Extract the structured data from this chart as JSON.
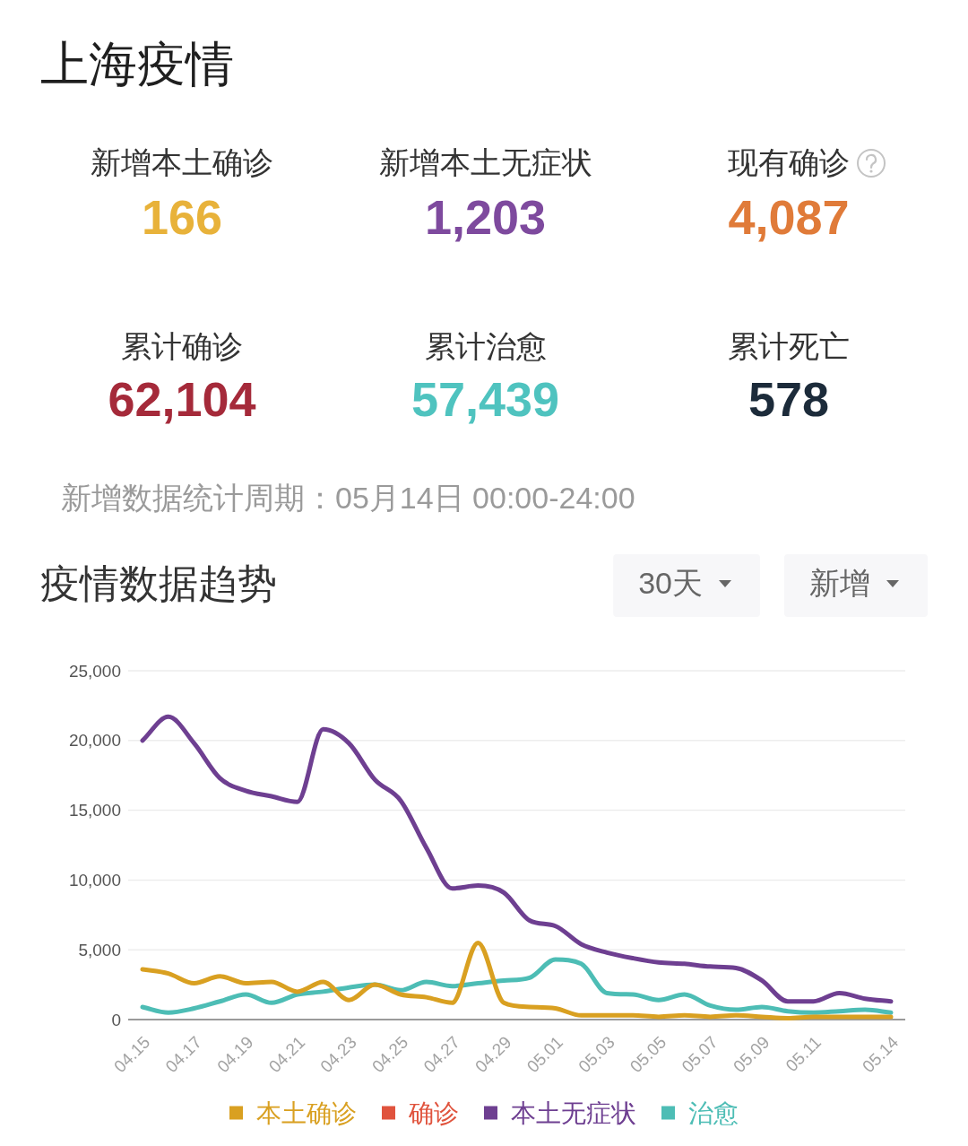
{
  "chart_data": [
    {
      "type": "other",
      "title": "上海疫情",
      "categories": [
        "新增本土确诊",
        "新增本土无症状",
        "现有确诊",
        "累计确诊",
        "累计治愈",
        "累计死亡"
      ],
      "value_labels": [
        "166",
        "1,203",
        "4,087",
        "62,104",
        "57,439",
        "578"
      ],
      "colors": [
        "#e8b23a",
        "#7e4a9e",
        "#e07b39",
        "#a52a3a",
        "#4fc3bf",
        "#1c2b3a"
      ],
      "annotations": [
        "新增数据统计周期：05月14日 00:00-24:00"
      ]
    },
    {
      "type": "line",
      "title": "疫情数据趋势",
      "annotations": [
        "30天",
        "新增"
      ],
      "categories": [
        "04.15",
        null,
        "04.17",
        null,
        "04.19",
        null,
        "04.21",
        null,
        "04.23",
        null,
        "04.25",
        null,
        "04.27",
        null,
        "04.29",
        null,
        "05.01",
        null,
        "05.03",
        null,
        "05.05",
        null,
        "05.07",
        null,
        "05.09",
        null,
        "05.11",
        null,
        null,
        "05.14"
      ],
      "series": [
        {
          "name": "本土确诊",
          "color": "#d9a021",
          "values": [
            3600,
            3300,
            2600,
            3100,
            2600,
            2700,
            2000,
            2700,
            1400,
            2500,
            1800,
            1600,
            1200,
            5500,
            1200,
            900,
            800,
            300,
            300,
            300,
            200,
            300,
            200,
            300,
            200,
            100,
            200,
            200,
            200,
            200
          ]
        },
        {
          "name": "确诊",
          "color": "#e0533d",
          "values": [
            null,
            null,
            null,
            null,
            null,
            null,
            null,
            null,
            null,
            null,
            null,
            null,
            null,
            null,
            null,
            null,
            null,
            null,
            null,
            null,
            null,
            null,
            null,
            null,
            null,
            null,
            null,
            null,
            null,
            null
          ]
        },
        {
          "name": "本土无症状",
          "color": "#6e3f91",
          "values": [
            20000,
            21700,
            19800,
            17300,
            16400,
            16000,
            15600,
            20800,
            19800,
            17200,
            15700,
            12300,
            9400,
            9600,
            9100,
            7100,
            6700,
            5400,
            4800,
            4400,
            4100,
            4000,
            3800,
            3700,
            2800,
            1300,
            1300,
            1900,
            1500,
            1300
          ]
        },
        {
          "name": "治愈",
          "color": "#4dbdb5",
          "values": [
            900,
            500,
            800,
            1300,
            1800,
            1200,
            1800,
            2000,
            2300,
            2500,
            2100,
            2700,
            2400,
            2600,
            2800,
            3000,
            4300,
            4000,
            1900,
            1800,
            1400,
            1800,
            1000,
            700,
            900,
            600,
            500,
            600,
            700,
            500
          ]
        }
      ],
      "ylim": [
        0,
        25000
      ],
      "yticks": [
        0,
        {
          "value": 5000,
          "label": "5,000"
        },
        {
          "value": 10000,
          "label": "10,000"
        },
        {
          "value": 15000,
          "label": "15,000"
        },
        {
          "value": 20000,
          "label": "20,000"
        },
        {
          "value": 25000,
          "label": "25,000"
        }
      ],
      "grid": "y",
      "legend": "bottom"
    }
  ]
}
